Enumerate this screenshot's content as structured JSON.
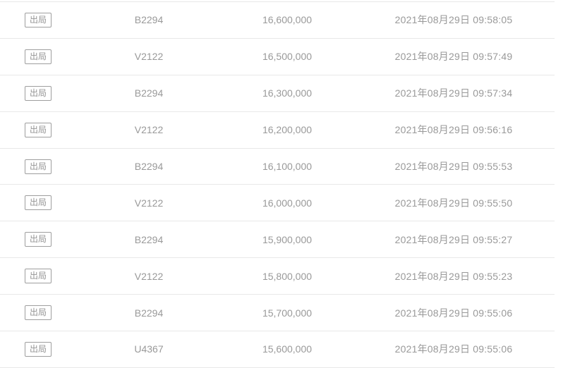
{
  "table": {
    "colors": {
      "background": "#ffffff",
      "text": "#999999",
      "row_divider": "#e8e8e8",
      "badge_border": "#9e9e9e",
      "badge_text": "#949494"
    },
    "rows": [
      {
        "status": "出局",
        "bidder": "B2294",
        "amount": "16,600,000",
        "time": "2021年08月29日 09:58:05"
      },
      {
        "status": "出局",
        "bidder": "V2122",
        "amount": "16,500,000",
        "time": "2021年08月29日 09:57:49"
      },
      {
        "status": "出局",
        "bidder": "B2294",
        "amount": "16,300,000",
        "time": "2021年08月29日 09:57:34"
      },
      {
        "status": "出局",
        "bidder": "V2122",
        "amount": "16,200,000",
        "time": "2021年08月29日 09:56:16"
      },
      {
        "status": "出局",
        "bidder": "B2294",
        "amount": "16,100,000",
        "time": "2021年08月29日 09:55:53"
      },
      {
        "status": "出局",
        "bidder": "V2122",
        "amount": "16,000,000",
        "time": "2021年08月29日 09:55:50"
      },
      {
        "status": "出局",
        "bidder": "B2294",
        "amount": "15,900,000",
        "time": "2021年08月29日 09:55:27"
      },
      {
        "status": "出局",
        "bidder": "V2122",
        "amount": "15,800,000",
        "time": "2021年08月29日 09:55:23"
      },
      {
        "status": "出局",
        "bidder": "B2294",
        "amount": "15,700,000",
        "time": "2021年08月29日 09:55:06"
      },
      {
        "status": "出局",
        "bidder": "U4367",
        "amount": "15,600,000",
        "time": "2021年08月29日 09:55:06"
      }
    ]
  }
}
